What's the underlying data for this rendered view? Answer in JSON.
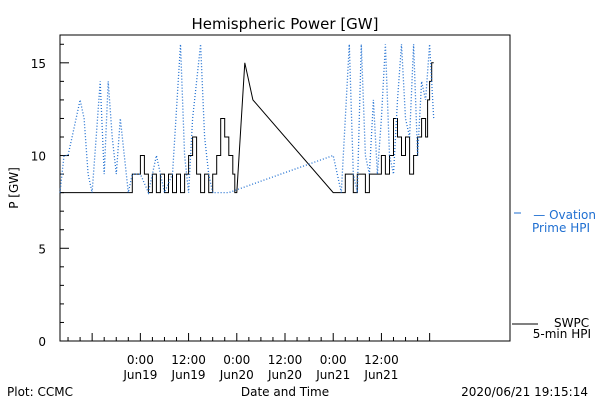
{
  "chart_data": {
    "type": "line",
    "title": "Hemispheric Power [GW]",
    "ylabel": "P [GW]",
    "xlabel": "Date and Time",
    "ylim": [
      0,
      16.5
    ],
    "yticks": [
      0,
      5,
      10,
      15
    ],
    "xlim": [
      -20,
      92
    ],
    "xticks": [
      {
        "x": 0,
        "time": "0:00",
        "date": "Jun19"
      },
      {
        "x": 12,
        "time": "12:00",
        "date": "Jun19"
      },
      {
        "x": 24,
        "time": "0:00",
        "date": "Jun20"
      },
      {
        "x": 36,
        "time": "12:00",
        "date": "Jun20"
      },
      {
        "x": 48,
        "time": "0:00",
        "date": "Jun21"
      },
      {
        "x": 60,
        "time": "12:00",
        "date": "Jun21"
      }
    ],
    "series": [
      {
        "name": "SWPC 5-min HPI",
        "legend_lines": [
          "SWPC",
          "5-min HPI"
        ],
        "color": "#000000",
        "style": "solid",
        "points": [
          [
            -20,
            8
          ],
          [
            -2,
            8
          ],
          [
            -2,
            9
          ],
          [
            0,
            9
          ],
          [
            0,
            10
          ],
          [
            1,
            10
          ],
          [
            1,
            9
          ],
          [
            2,
            9
          ],
          [
            2,
            8
          ],
          [
            3,
            8
          ],
          [
            3,
            9
          ],
          [
            4,
            9
          ],
          [
            4,
            8
          ],
          [
            5,
            8
          ],
          [
            5,
            9
          ],
          [
            6,
            9
          ],
          [
            6,
            8
          ],
          [
            7,
            8
          ],
          [
            7,
            9
          ],
          [
            8,
            9
          ],
          [
            8,
            8
          ],
          [
            9,
            8
          ],
          [
            9,
            9
          ],
          [
            10,
            9
          ],
          [
            10,
            8
          ],
          [
            11,
            8
          ],
          [
            11,
            9
          ],
          [
            12,
            9
          ],
          [
            12,
            10
          ],
          [
            13,
            10
          ],
          [
            13,
            11
          ],
          [
            14,
            11
          ],
          [
            14,
            9
          ],
          [
            15,
            9
          ],
          [
            15,
            8
          ],
          [
            16,
            8
          ],
          [
            16,
            9
          ],
          [
            17,
            9
          ],
          [
            17,
            8
          ],
          [
            18,
            8
          ],
          [
            18,
            9
          ],
          [
            19,
            9
          ],
          [
            19,
            10
          ],
          [
            20,
            10
          ],
          [
            20,
            12
          ],
          [
            21,
            12
          ],
          [
            21,
            11
          ],
          [
            22,
            11
          ],
          [
            22,
            10
          ],
          [
            23,
            10
          ],
          [
            23,
            9
          ],
          [
            23.5,
            9
          ],
          [
            23.5,
            8
          ],
          [
            24,
            8
          ],
          [
            26,
            15
          ],
          [
            28,
            13
          ],
          [
            48,
            8
          ],
          [
            51,
            8
          ],
          [
            51,
            9
          ],
          [
            53,
            9
          ],
          [
            53,
            8
          ],
          [
            54,
            8
          ],
          [
            54,
            9
          ],
          [
            56,
            9
          ],
          [
            56,
            8
          ],
          [
            57,
            8
          ],
          [
            57,
            9
          ],
          [
            60,
            9
          ],
          [
            60,
            10
          ],
          [
            61,
            10
          ],
          [
            61,
            9
          ],
          [
            62,
            9
          ],
          [
            62,
            10
          ],
          [
            63,
            10
          ],
          [
            63,
            12
          ],
          [
            64,
            12
          ],
          [
            64,
            11
          ],
          [
            65,
            11
          ],
          [
            65,
            10
          ],
          [
            66,
            10
          ],
          [
            66,
            11
          ],
          [
            67,
            11
          ],
          [
            67,
            9
          ],
          [
            68,
            9
          ],
          [
            68,
            10
          ],
          [
            69,
            10
          ],
          [
            69,
            11
          ],
          [
            70,
            11
          ],
          [
            70,
            12
          ],
          [
            71,
            12
          ],
          [
            71,
            11
          ],
          [
            71.5,
            11
          ],
          [
            71.5,
            13
          ],
          [
            72,
            13
          ],
          [
            72,
            14
          ],
          [
            72.5,
            14
          ],
          [
            72.5,
            15
          ],
          [
            73,
            15
          ]
        ]
      },
      {
        "name": "Ovation Prime HPI",
        "legend_lines": [
          "— Ovation",
          "Prime HPI"
        ],
        "color": "#1f6fd1",
        "style": "dotted",
        "points": [
          [
            -20,
            8
          ],
          [
            -19,
            10
          ],
          [
            -18,
            10
          ],
          [
            -17,
            11
          ],
          [
            -16,
            12
          ],
          [
            -15,
            13
          ],
          [
            -14,
            12
          ],
          [
            -13,
            9
          ],
          [
            -12,
            8
          ],
          [
            -11,
            11
          ],
          [
            -10,
            14
          ],
          [
            -9,
            9
          ],
          [
            -8,
            14
          ],
          [
            -7,
            11
          ],
          [
            -6,
            9
          ],
          [
            -5,
            12
          ],
          [
            -4,
            10
          ],
          [
            -3,
            8
          ],
          [
            -2,
            9
          ],
          [
            0,
            9
          ],
          [
            2,
            8
          ],
          [
            4,
            10
          ],
          [
            6,
            8
          ],
          [
            8,
            9
          ],
          [
            10,
            16
          ],
          [
            11,
            10
          ],
          [
            12,
            8
          ],
          [
            13,
            12
          ],
          [
            14,
            14
          ],
          [
            15,
            16
          ],
          [
            16,
            11
          ],
          [
            17,
            9
          ],
          [
            18,
            8
          ],
          [
            20,
            8
          ],
          [
            22,
            8
          ],
          [
            48,
            10
          ],
          [
            50,
            8
          ],
          [
            52,
            16
          ],
          [
            53,
            9
          ],
          [
            54,
            8
          ],
          [
            55,
            16
          ],
          [
            56,
            10
          ],
          [
            57,
            9
          ],
          [
            58,
            13
          ],
          [
            59,
            9
          ],
          [
            60,
            12
          ],
          [
            61,
            16
          ],
          [
            62,
            10
          ],
          [
            63,
            9
          ],
          [
            64,
            13
          ],
          [
            65,
            16
          ],
          [
            66,
            12
          ],
          [
            67,
            11
          ],
          [
            68,
            16
          ],
          [
            69,
            10
          ],
          [
            70,
            14
          ],
          [
            71,
            13
          ],
          [
            72,
            16
          ],
          [
            73,
            12
          ]
        ]
      }
    ],
    "grid": false
  },
  "footer": {
    "plot_credit": "Plot: CCMC",
    "timestamp": "2020/06/21  19:15:14"
  }
}
